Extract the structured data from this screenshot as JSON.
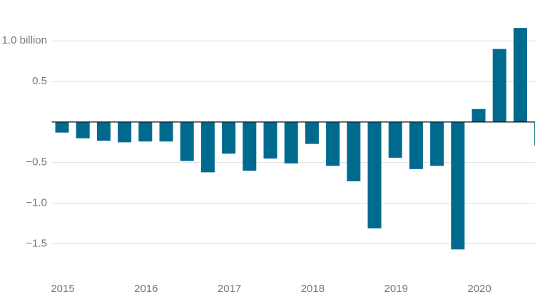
{
  "chart_data": {
    "type": "bar",
    "categories": [
      "2015",
      null,
      null,
      null,
      "2016",
      null,
      null,
      null,
      "2017",
      null,
      null,
      null,
      "2018",
      null,
      null,
      null,
      "2019",
      null,
      null,
      null,
      "2020",
      null,
      null,
      null
    ],
    "values": [
      -0.13,
      -0.2,
      -0.23,
      -0.25,
      -0.24,
      -0.24,
      -0.48,
      -0.62,
      -0.39,
      -0.6,
      -0.45,
      -0.51,
      -0.27,
      -0.54,
      -0.73,
      -1.31,
      -0.44,
      -0.58,
      -0.54,
      -1.57,
      0.16,
      0.9,
      1.16,
      -0.29
    ],
    "color": "#006a8e",
    "ylim": [
      -1.84,
      1.24
    ],
    "yticks": [
      {
        "value": -1.5,
        "label": "−1.5"
      },
      {
        "value": -1,
        "label": "−1.0"
      },
      {
        "value": -0.5,
        "label": "−0.5"
      },
      0.5,
      {
        "value": 1,
        "label": "1.0 billion"
      }
    ],
    "grid": true
  }
}
